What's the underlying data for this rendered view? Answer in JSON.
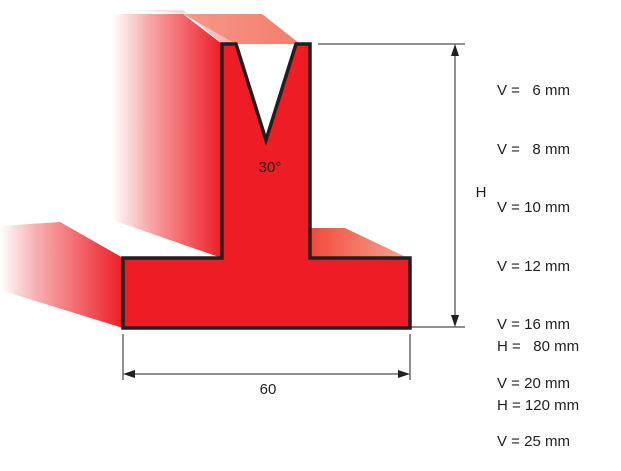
{
  "diagram": {
    "angle_label": "30°",
    "height_label": "H",
    "width_label": "60",
    "v_options": [
      "V =   6 mm",
      "V =   8 mm",
      "V = 10 mm",
      "V = 12 mm",
      "V = 16 mm",
      "V = 20 mm",
      "V = 25 mm"
    ],
    "h_options": [
      "H =   80 mm",
      "H = 120 mm"
    ],
    "colors": {
      "body": "#ee1c25",
      "outline": "#231f20",
      "dimension_line": "#231f20",
      "background": "#ffffff"
    }
  }
}
